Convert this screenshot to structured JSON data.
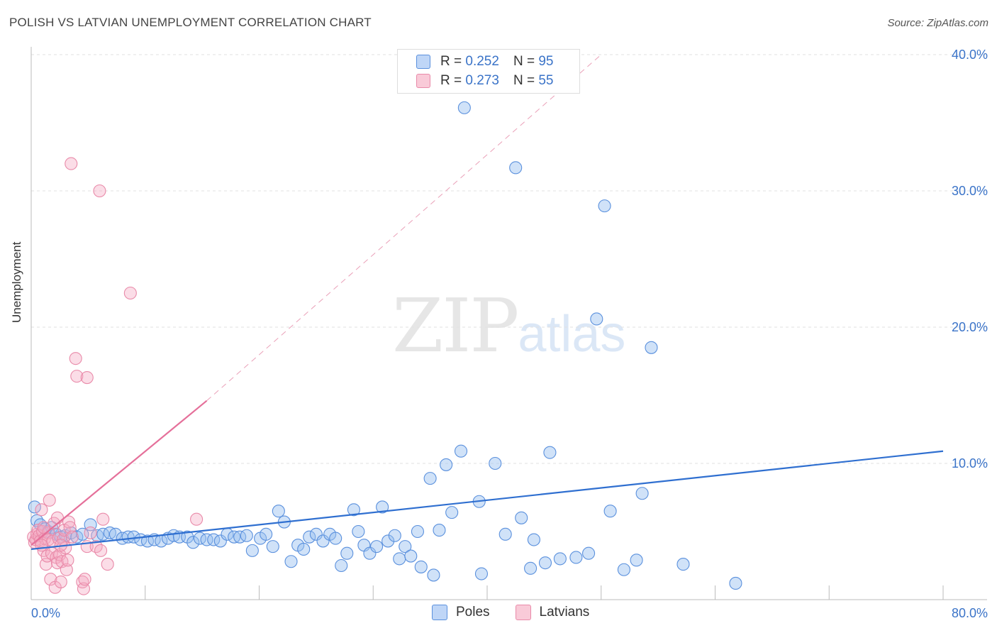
{
  "title": "POLISH VS LATVIAN UNEMPLOYMENT CORRELATION CHART",
  "source": "Source: ZipAtlas.com",
  "watermark": {
    "zip": "ZIP",
    "atlas": "atlas"
  },
  "legend": {
    "r_label": "R =",
    "n_label": "N =",
    "rows": [
      {
        "r": "0.252",
        "n": "95",
        "color": "#5a90dd"
      },
      {
        "r": "0.273",
        "n": "55",
        "color": "#e98aa9"
      }
    ]
  },
  "bottom_legend": [
    {
      "name": "Poles",
      "color": "#5a90dd"
    },
    {
      "name": "Latvians",
      "color": "#e98aa9"
    }
  ],
  "chart_data": {
    "type": "scatter",
    "title": "POLISH VS LATVIAN UNEMPLOYMENT CORRELATION CHART",
    "xlabel": "",
    "ylabel": "Unemployment",
    "xlim": [
      0,
      80
    ],
    "ylim": [
      0,
      41
    ],
    "x_tick_labels": [
      "0.0%",
      "80.0%"
    ],
    "y_ticks": [
      10,
      20,
      30,
      40
    ],
    "y_tick_labels": [
      "10.0%",
      "20.0%",
      "30.0%",
      "40.0%"
    ],
    "grid": true,
    "legend_position": "top-center",
    "series": [
      {
        "name": "Poles",
        "color": "#5a90dd",
        "trend": {
          "x0": 0,
          "y0": 3.7,
          "x1": 80,
          "y1": 10.9
        },
        "points": [
          [
            0.3,
            6.8
          ],
          [
            0.5,
            5.8
          ],
          [
            0.8,
            5.5
          ],
          [
            1.2,
            5.2
          ],
          [
            1.5,
            5.0
          ],
          [
            1.8,
            5.3
          ],
          [
            2.2,
            4.8
          ],
          [
            2.6,
            4.6
          ],
          [
            3.0,
            4.7
          ],
          [
            3.5,
            4.9
          ],
          [
            4.0,
            4.6
          ],
          [
            4.5,
            4.8
          ],
          [
            5.2,
            5.5
          ],
          [
            5.8,
            4.7
          ],
          [
            6.3,
            4.8
          ],
          [
            6.9,
            4.9
          ],
          [
            7.4,
            4.8
          ],
          [
            8.0,
            4.5
          ],
          [
            8.5,
            4.6
          ],
          [
            9.0,
            4.6
          ],
          [
            9.6,
            4.4
          ],
          [
            10.2,
            4.3
          ],
          [
            10.8,
            4.4
          ],
          [
            11.4,
            4.3
          ],
          [
            12.0,
            4.5
          ],
          [
            12.5,
            4.7
          ],
          [
            13.0,
            4.6
          ],
          [
            13.7,
            4.6
          ],
          [
            14.2,
            4.2
          ],
          [
            14.8,
            4.5
          ],
          [
            15.4,
            4.4
          ],
          [
            16.0,
            4.4
          ],
          [
            16.6,
            4.3
          ],
          [
            17.2,
            4.8
          ],
          [
            17.8,
            4.6
          ],
          [
            18.3,
            4.6
          ],
          [
            18.9,
            4.7
          ],
          [
            19.4,
            3.6
          ],
          [
            20.1,
            4.5
          ],
          [
            20.6,
            4.8
          ],
          [
            21.2,
            3.9
          ],
          [
            21.7,
            6.5
          ],
          [
            22.2,
            5.7
          ],
          [
            22.8,
            2.8
          ],
          [
            23.4,
            4.0
          ],
          [
            23.9,
            3.7
          ],
          [
            24.4,
            4.6
          ],
          [
            25.0,
            4.8
          ],
          [
            25.6,
            4.3
          ],
          [
            26.2,
            4.8
          ],
          [
            26.7,
            4.5
          ],
          [
            27.2,
            2.5
          ],
          [
            27.7,
            3.4
          ],
          [
            28.3,
            6.6
          ],
          [
            28.7,
            5.0
          ],
          [
            29.2,
            4.0
          ],
          [
            29.7,
            3.4
          ],
          [
            30.3,
            3.9
          ],
          [
            30.8,
            6.8
          ],
          [
            31.3,
            4.3
          ],
          [
            31.9,
            4.7
          ],
          [
            32.3,
            3.0
          ],
          [
            32.8,
            3.9
          ],
          [
            33.3,
            3.2
          ],
          [
            33.9,
            5.0
          ],
          [
            34.2,
            2.4
          ],
          [
            35.0,
            8.9
          ],
          [
            35.3,
            1.8
          ],
          [
            35.8,
            5.1
          ],
          [
            36.4,
            9.9
          ],
          [
            36.9,
            6.4
          ],
          [
            37.7,
            10.9
          ],
          [
            38.0,
            36.1
          ],
          [
            39.3,
            7.2
          ],
          [
            39.5,
            1.9
          ],
          [
            40.7,
            10.0
          ],
          [
            41.6,
            4.8
          ],
          [
            42.5,
            31.7
          ],
          [
            43.0,
            6.0
          ],
          [
            43.8,
            2.3
          ],
          [
            44.1,
            4.4
          ],
          [
            45.1,
            2.7
          ],
          [
            45.5,
            10.8
          ],
          [
            46.4,
            3.0
          ],
          [
            47.8,
            3.1
          ],
          [
            48.9,
            3.4
          ],
          [
            49.6,
            20.6
          ],
          [
            50.3,
            28.9
          ],
          [
            50.8,
            6.5
          ],
          [
            52.0,
            2.2
          ],
          [
            53.1,
            2.9
          ],
          [
            53.6,
            7.8
          ],
          [
            54.4,
            18.5
          ],
          [
            57.2,
            2.6
          ],
          [
            61.8,
            1.2
          ]
        ]
      },
      {
        "name": "Latvians",
        "color": "#e98aa9",
        "trend": {
          "x0": 0,
          "y0": 4.0,
          "x1": 15.4,
          "y1": 14.6,
          "dash_x1": 50,
          "dash_y1": 40.0
        },
        "points": [
          [
            0.2,
            4.6
          ],
          [
            0.3,
            4.2
          ],
          [
            0.4,
            4.4
          ],
          [
            0.5,
            4.8
          ],
          [
            0.6,
            5.1
          ],
          [
            0.7,
            4.7
          ],
          [
            0.8,
            4.3
          ],
          [
            0.9,
            6.6
          ],
          [
            1.0,
            5.0
          ],
          [
            1.1,
            3.6
          ],
          [
            1.2,
            4.5
          ],
          [
            1.3,
            2.6
          ],
          [
            1.4,
            3.2
          ],
          [
            1.5,
            4.9
          ],
          [
            1.5,
            4.4
          ],
          [
            1.6,
            7.3
          ],
          [
            1.7,
            1.5
          ],
          [
            1.8,
            3.4
          ],
          [
            1.9,
            4.3
          ],
          [
            2.0,
            5.6
          ],
          [
            2.1,
            0.9
          ],
          [
            2.2,
            3.1
          ],
          [
            2.3,
            2.7
          ],
          [
            2.3,
            6.0
          ],
          [
            2.4,
            4.5
          ],
          [
            2.5,
            3.3
          ],
          [
            2.6,
            1.3
          ],
          [
            2.7,
            2.8
          ],
          [
            2.8,
            4.4
          ],
          [
            2.9,
            5.1
          ],
          [
            3.0,
            3.8
          ],
          [
            3.1,
            2.2
          ],
          [
            3.2,
            2.9
          ],
          [
            3.3,
            5.7
          ],
          [
            3.4,
            5.3
          ],
          [
            3.5,
            32.0
          ],
          [
            3.6,
            4.6
          ],
          [
            3.9,
            17.7
          ],
          [
            4.0,
            16.4
          ],
          [
            4.5,
            1.3
          ],
          [
            4.6,
            0.8
          ],
          [
            4.7,
            1.5
          ],
          [
            4.9,
            3.9
          ],
          [
            4.9,
            16.3
          ],
          [
            5.2,
            4.9
          ],
          [
            5.7,
            3.9
          ],
          [
            6.0,
            30.0
          ],
          [
            6.1,
            3.6
          ],
          [
            6.3,
            5.9
          ],
          [
            6.7,
            2.6
          ],
          [
            8.7,
            22.5
          ],
          [
            14.5,
            5.9
          ],
          [
            1.1,
            5.3
          ],
          [
            0.9,
            4.0
          ],
          [
            2.6,
            4.0
          ]
        ]
      }
    ]
  }
}
